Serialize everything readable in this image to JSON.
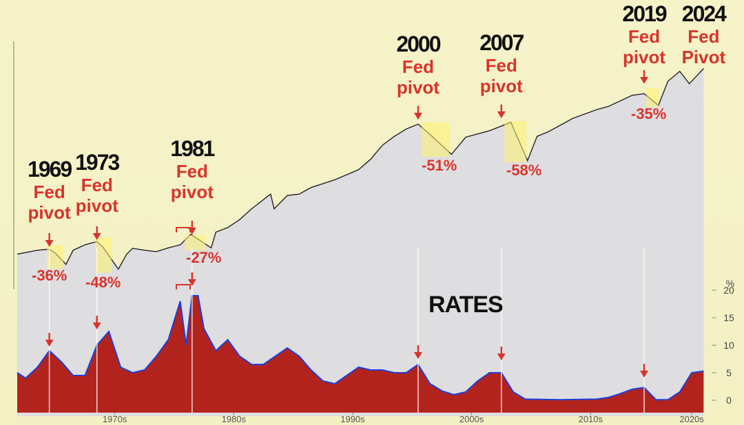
{
  "chart_data": [
    {
      "type": "line",
      "log": true,
      "color": "#222222",
      "area_color": "#dedde0",
      "x": [
        1966.3,
        1967,
        1968,
        1969,
        1969.5,
        1970.4,
        1971,
        1972,
        1973,
        1973.5,
        1974.8,
        1975.5,
        1976,
        1977,
        1978,
        1979,
        1980,
        1980.9,
        1982.6,
        1983,
        1984,
        1985,
        1986,
        1987.6,
        1987.9,
        1989,
        1990,
        1991,
        1993,
        1995,
        1996,
        1997,
        1998,
        1999,
        2000,
        2001,
        2002.8,
        2004,
        2006,
        2007.8,
        2009.2,
        2010,
        2011,
        2013,
        2015,
        2016,
        2018,
        2019,
        2020.2,
        2021,
        2022,
        2022.8,
        2024
      ],
      "values": [
        90,
        93,
        98,
        100,
        92,
        72,
        98,
        110,
        118,
        105,
        65,
        90,
        102,
        98,
        95,
        103,
        110,
        138,
        103,
        145,
        160,
        190,
        240,
        330,
        240,
        320,
        330,
        380,
        450,
        560,
        700,
        950,
        1150,
        1350,
        1500,
        1200,
        780,
        1130,
        1300,
        1560,
        680,
        1150,
        1280,
        1700,
        2050,
        2200,
        2800,
        2900,
        2250,
        3800,
        4700,
        3600,
        5000
      ],
      "xlim": [
        1966.3,
        2024.5
      ],
      "ylim": [
        40,
        8000
      ],
      "annotations": [
        {
          "year": 1969,
          "label": "Fed pivot",
          "drawdown": "-36%"
        },
        {
          "year": 1973,
          "label": "Fed pivot",
          "drawdown": "-48%"
        },
        {
          "year": 1981,
          "label": "Fed pivot",
          "drawdown": "-27%"
        },
        {
          "year": 2000,
          "label": "Fed pivot",
          "drawdown": "-51%"
        },
        {
          "year": 2007,
          "label": "Fed pivot",
          "drawdown": "-58%"
        },
        {
          "year": 2019,
          "label": "Fed pivot",
          "drawdown": "-35%"
        },
        {
          "year": 2024,
          "label": "Fed Pivot"
        }
      ]
    },
    {
      "type": "area",
      "title": "RATES",
      "ylabel": "%",
      "color": "#1f3fd6",
      "area_color": "#b3231d",
      "x": [
        1966.3,
        1967,
        1968,
        1969,
        1970,
        1971,
        1972,
        1973,
        1974,
        1975,
        1976,
        1977,
        1978,
        1979,
        1980,
        1980.5,
        1981,
        1981.5,
        1982,
        1983,
        1984,
        1985,
        1986,
        1987,
        1988,
        1989,
        1990,
        1991,
        1992,
        1993,
        1994,
        1995,
        1996,
        1997,
        1998,
        1999,
        2000,
        2001,
        2002,
        2003,
        2004,
        2005,
        2006,
        2007,
        2008,
        2009,
        2012,
        2015,
        2016,
        2017,
        2018,
        2019,
        2020,
        2021,
        2022,
        2023,
        2024
      ],
      "values": [
        5,
        4,
        6,
        9,
        7,
        4.5,
        4.5,
        10,
        12.5,
        6,
        5,
        5.5,
        8,
        11,
        18,
        10,
        19,
        19,
        13,
        9,
        11,
        8,
        6.5,
        6.5,
        8,
        9.5,
        8,
        5.5,
        3.5,
        3,
        4.5,
        6,
        5.5,
        5.5,
        5,
        5,
        6.5,
        3,
        1.7,
        1,
        1.5,
        3.5,
        5,
        5,
        1.5,
        0.2,
        0.1,
        0.2,
        0.5,
        1.2,
        2,
        2.3,
        0.1,
        0.1,
        1.5,
        5,
        5.3
      ],
      "xlim": [
        1966.3,
        2024.5
      ],
      "ylim": [
        -2,
        21.5
      ],
      "yticks": [
        0,
        5,
        10,
        15,
        20
      ],
      "xticks": [
        {
          "value": 1974.5,
          "label": "1970s"
        },
        {
          "value": 1984.5,
          "label": "1980s"
        },
        {
          "value": 1994.5,
          "label": "1990s"
        },
        {
          "value": 2004.5,
          "label": "2000s"
        },
        {
          "value": 2014.5,
          "label": "2010s"
        },
        {
          "value": 2023,
          "label": "2020s"
        }
      ]
    }
  ]
}
